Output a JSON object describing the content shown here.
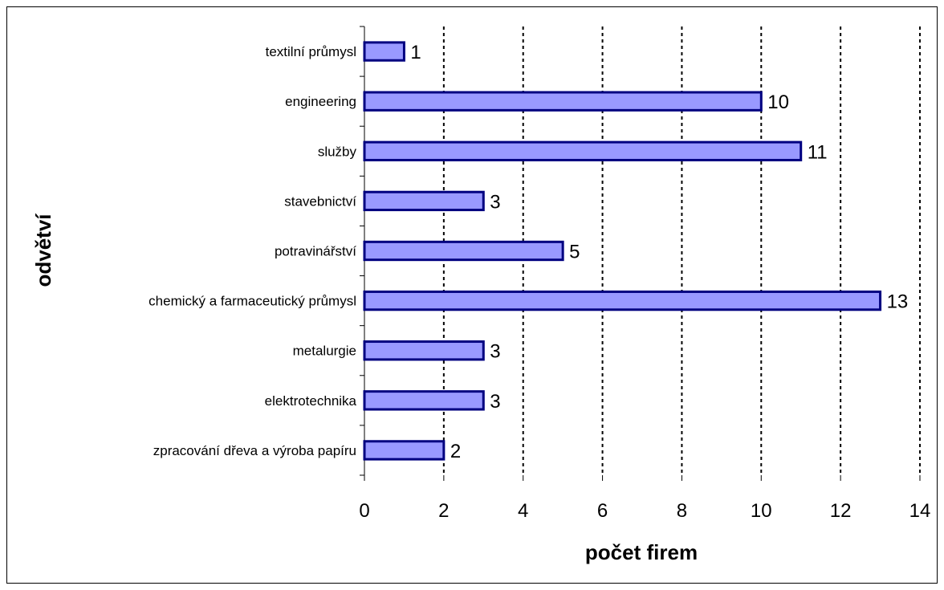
{
  "chart_data": {
    "type": "bar",
    "orientation": "horizontal",
    "categories": [
      "zpracování dřeva a výroba papíru",
      "elektrotechnika",
      "metalurgie",
      "chemický a farmaceutický průmysl",
      "potravinářství",
      "stavebnictví",
      "služby",
      "engineering",
      "textilní průmysl"
    ],
    "values": [
      2,
      3,
      3,
      13,
      5,
      3,
      11,
      10,
      1
    ],
    "xlabel": "počet firem",
    "ylabel": "odvětví",
    "xlim": [
      0,
      14
    ],
    "x_ticks": [
      "0",
      "2",
      "4",
      "6",
      "8",
      "10",
      "12",
      "14"
    ],
    "grid": "vertical dashed",
    "data_labels": true,
    "colors": {
      "bar_fill": "#9999ff",
      "bar_stroke": "#000080",
      "grid": "#000000"
    }
  }
}
